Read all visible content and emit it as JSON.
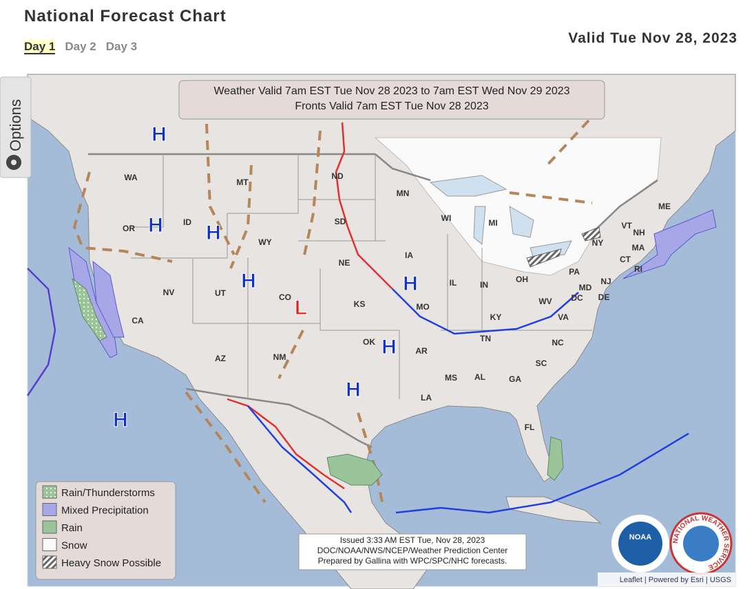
{
  "header": {
    "title": "National Forecast Chart",
    "tabs": [
      "Day 1",
      "Day 2",
      "Day 3"
    ],
    "valid": "Valid Tue Nov 28, 2023"
  },
  "map": {
    "options": "Options",
    "banner": [
      "Weather Valid 7am EST Tue Nov 28 2023 to 7am EST Wed Nov 29 2023",
      "Fronts Valid 7am EST Tue Nov 28 2023"
    ],
    "states": [
      "WA",
      "OR",
      "ID",
      "MT",
      "WY",
      "NV",
      "UT",
      "CO",
      "CA",
      "AZ",
      "NM",
      "ND",
      "SD",
      "NE",
      "KS",
      "OK",
      "MN",
      "IA",
      "MO",
      "AR",
      "LA",
      "MS",
      "AL",
      "GA",
      "FL",
      "TN",
      "KY",
      "IL",
      "IN",
      "OH",
      "MI",
      "WI",
      "WV",
      "VA",
      "NC",
      "SC",
      "PA",
      "NY",
      "ME",
      "VT",
      "NH",
      "MA",
      "CT",
      "RI",
      "NJ",
      "DE",
      "MD",
      "DC"
    ],
    "pressure": [
      "H",
      "H",
      "H",
      "H",
      "H",
      "H",
      "H",
      "H",
      "L"
    ],
    "legend": [
      "Rain/Thunderstorms",
      "Mixed Precipitation",
      "Rain",
      "Snow",
      "Heavy Snow Possible"
    ],
    "issued": [
      "Issued  3:33 AM EST  Tue, Nov 28, 2023",
      "DOC/NOAA/NWS/NCEP/Weather Prediction Center",
      "Prepared by Gallina with WPC/SPC/NHC forecasts."
    ],
    "logos": [
      "NOAA",
      "NATIONAL WEATHER SERVICE"
    ],
    "attribution": "Leaflet | Powered by Esri | USGS"
  }
}
